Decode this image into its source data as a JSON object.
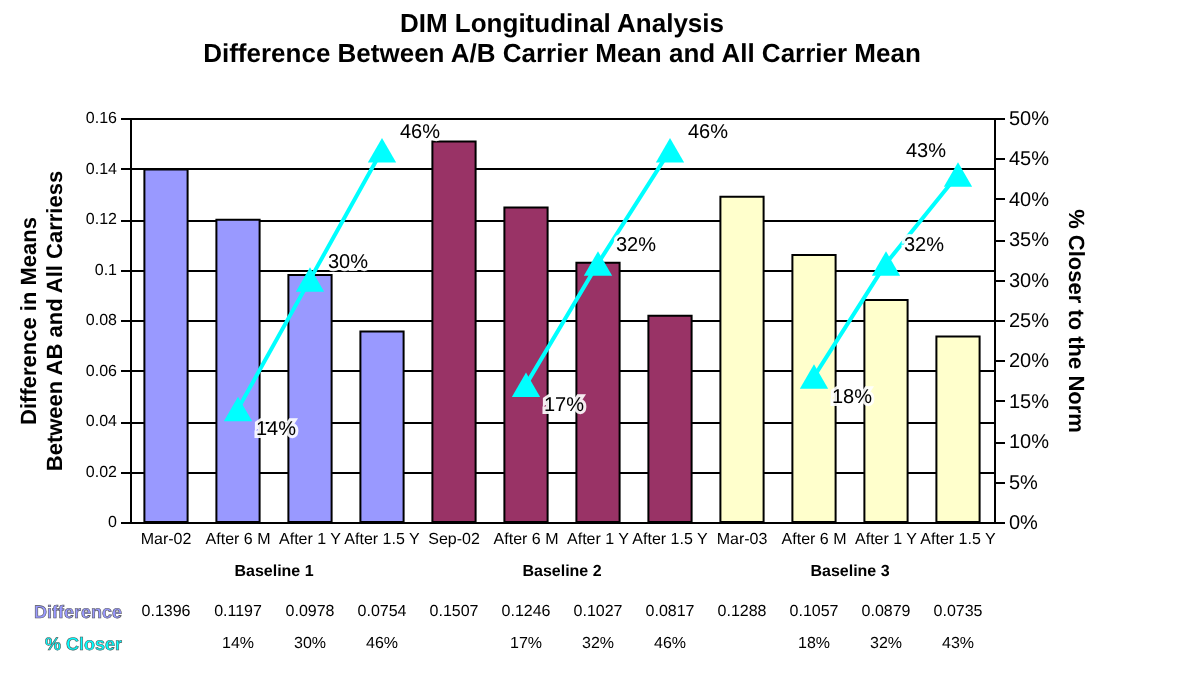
{
  "chart_data": {
    "type": "bar",
    "title": "DIM Longitudinal Analysis",
    "subtitle": "Difference Between A/B Carrier Mean and All Carrier Mean",
    "ylabel": "Difference in Means\nBetween AB and All Carriess",
    "y2label": "% Closer to the Norm",
    "categories": [
      "Mar-02",
      "After 6 M",
      "After 1 Y",
      "After 1.5 Y",
      "Sep-02",
      "After 6 M",
      "After 1 Y",
      "After 1.5 Y",
      "Mar-03",
      "After 6 M",
      "After 1 Y",
      "After 1.5 Y"
    ],
    "series": [
      {
        "name": "Difference",
        "colors": [
          "#9999ff",
          "#9999ff",
          "#9999ff",
          "#9999ff",
          "#993366",
          "#993366",
          "#993366",
          "#993366",
          "#ffffcc",
          "#ffffcc",
          "#ffffcc",
          "#ffffcc"
        ],
        "values": [
          0.1396,
          0.1197,
          0.0978,
          0.0754,
          0.1507,
          0.1246,
          0.1027,
          0.0817,
          0.1288,
          0.1057,
          0.0879,
          0.0735
        ],
        "value_labels": [
          "0.1396",
          "0.1197",
          "0.0978",
          "0.0754",
          "0.1507",
          "0.1246",
          "0.1027",
          "0.0817",
          "0.1288",
          "0.1057",
          "0.0879",
          "0.0735"
        ]
      },
      {
        "name": "% Closer",
        "type": "line",
        "axis": "y2",
        "color": "#00ffff",
        "marker": "triangle",
        "values": [
          null,
          14,
          30,
          46,
          null,
          17,
          32,
          46,
          null,
          18,
          32,
          43
        ],
        "value_labels": [
          null,
          "14%",
          "30%",
          "46%",
          null,
          "17%",
          "32%",
          "46%",
          null,
          "18%",
          "32%",
          "43%"
        ]
      }
    ],
    "ylim": [
      0,
      0.16
    ],
    "yticks": [
      0,
      0.02,
      0.04,
      0.06,
      0.08,
      0.1,
      0.12,
      0.14,
      0.16
    ],
    "y2lim": [
      0,
      50
    ],
    "y2ticks": [
      {
        "value": 0,
        "label": "0%"
      },
      {
        "value": 5,
        "label": "5%"
      },
      {
        "value": 10,
        "label": "10%"
      },
      {
        "value": 15,
        "label": "15%"
      },
      {
        "value": 20,
        "label": "20%"
      },
      {
        "value": 25,
        "label": "25%"
      },
      {
        "value": 30,
        "label": "30%"
      },
      {
        "value": 35,
        "label": "35%"
      },
      {
        "value": 40,
        "label": "40%"
      },
      {
        "value": 45,
        "label": "45%"
      },
      {
        "value": 50,
        "label": "50%"
      }
    ],
    "grid": "y",
    "annotations": [
      "Baseline 1",
      "Baseline 2",
      "Baseline 3"
    ]
  }
}
